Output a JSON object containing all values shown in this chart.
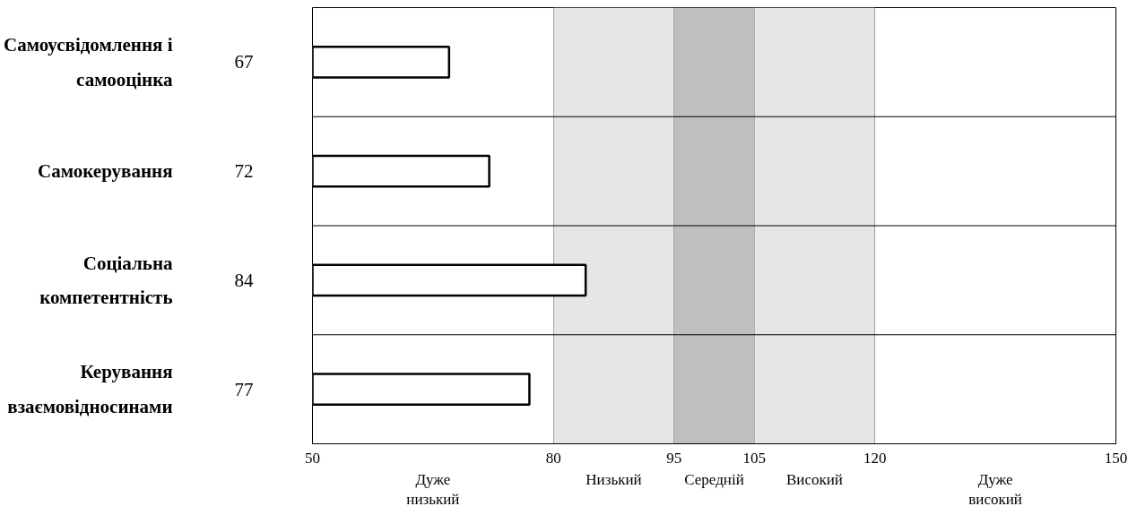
{
  "chart_data": {
    "type": "bar",
    "orientation": "horizontal",
    "categories": [
      "Самоусвідомлення і самооцінка",
      "Самокерування",
      "Соціальна компетентність",
      "Керування взаємовідносинами"
    ],
    "values": [
      67,
      72,
      84,
      77
    ],
    "color": "#ffffff",
    "data_labels": true,
    "xlim": [
      50,
      150
    ],
    "xticks": [
      50,
      80,
      95,
      105,
      120,
      150
    ],
    "grid": true,
    "bands": [
      {
        "axis": "x",
        "from": 80,
        "to": 95,
        "label": "Низький",
        "color": "#e6e6e6"
      },
      {
        "axis": "x",
        "from": 95,
        "to": 105,
        "label": "Середній",
        "color": "#bfbfbf"
      },
      {
        "axis": "x",
        "from": 105,
        "to": 120,
        "label": "Високий",
        "color": "#e6e6e6"
      }
    ],
    "annotations": [
      "Дуже низький",
      "Дуже високий"
    ]
  }
}
